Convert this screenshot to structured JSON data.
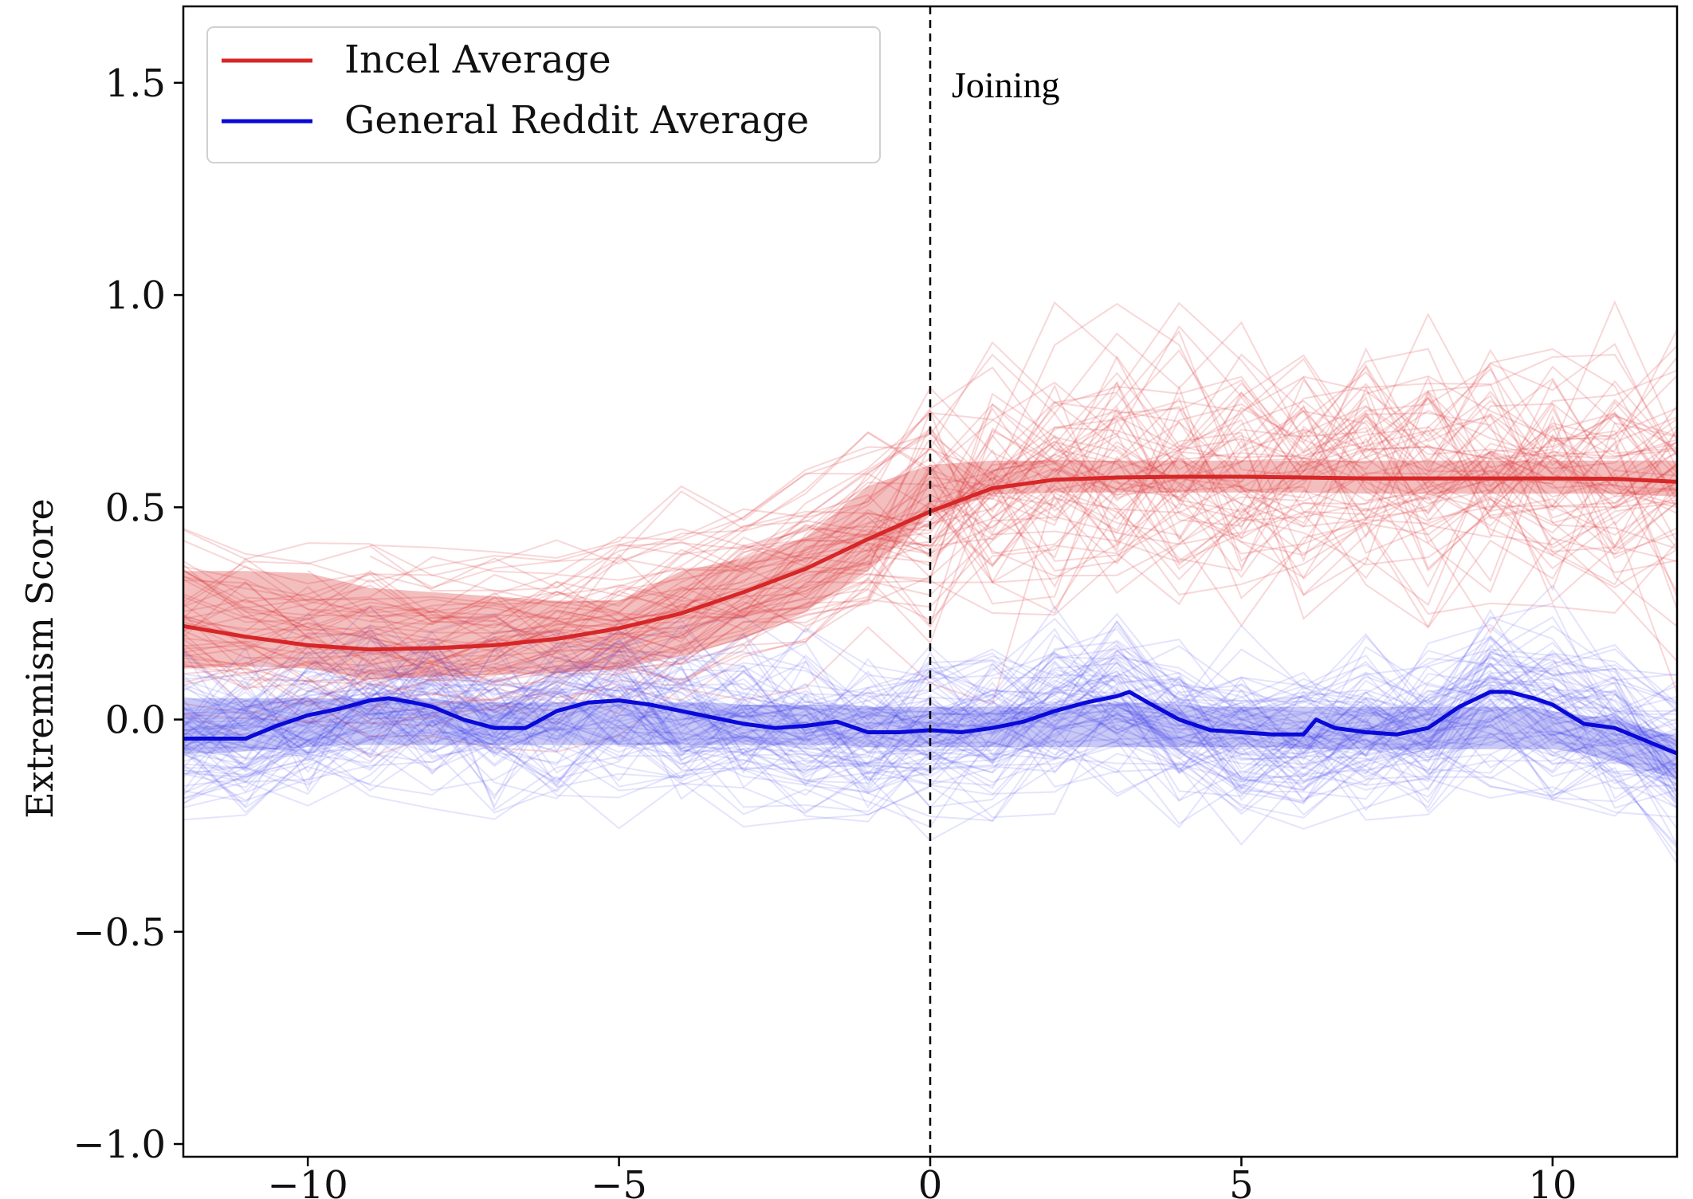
{
  "chart_data": {
    "type": "line",
    "title": "",
    "xlabel": "",
    "ylabel": "Extremism Score",
    "xlim": [
      -12,
      12
    ],
    "ylim": [
      -1.03,
      1.68
    ],
    "grid": false,
    "legend_position": "top-left",
    "xticks": [
      -10,
      -5,
      0,
      5,
      10
    ],
    "xtick_labels": [
      "−10",
      "−5",
      "0",
      "5",
      "10"
    ],
    "yticks": [
      -1.0,
      -0.5,
      0.0,
      0.5,
      1.0,
      1.5
    ],
    "ytick_labels": [
      "−1.0",
      "−0.5",
      "0.0",
      "0.5",
      "1.0",
      "1.5"
    ],
    "annotation": {
      "text": "Joining",
      "x": 0,
      "line_style": "dashed"
    },
    "series": [
      {
        "name": "Incel Average",
        "color": "#d62728",
        "x": [
          -12,
          -11,
          -10,
          -9,
          -8,
          -7,
          -6,
          -5,
          -4,
          -3,
          -2,
          -1,
          0,
          1,
          2,
          3,
          4,
          5,
          6,
          7,
          8,
          9,
          10,
          11,
          12
        ],
        "y": [
          0.22,
          0.195,
          0.175,
          0.165,
          0.168,
          0.175,
          0.19,
          0.215,
          0.25,
          0.3,
          0.355,
          0.425,
          0.49,
          0.545,
          0.565,
          0.57,
          0.572,
          0.572,
          0.57,
          0.568,
          0.568,
          0.568,
          0.568,
          0.567,
          0.56
        ],
        "band_low": [
          0.12,
          0.125,
          0.12,
          0.095,
          0.1,
          0.105,
          0.11,
          0.12,
          0.15,
          0.19,
          0.255,
          0.35,
          0.48,
          0.53,
          0.535,
          0.535,
          0.535,
          0.535,
          0.535,
          0.532,
          0.532,
          0.532,
          0.532,
          0.532,
          0.525
        ],
        "band_high": [
          0.35,
          0.35,
          0.345,
          0.31,
          0.3,
          0.29,
          0.28,
          0.28,
          0.35,
          0.38,
          0.43,
          0.55,
          0.6,
          0.61,
          0.61,
          0.61,
          0.61,
          0.61,
          0.61,
          0.61,
          0.61,
          0.61,
          0.61,
          0.61,
          0.61
        ]
      },
      {
        "name": "General Reddit Average",
        "color": "#0a0ad8",
        "x": [
          -12,
          -11.5,
          -11,
          -10.5,
          -10,
          -9.5,
          -9,
          -8.7,
          -8.3,
          -8,
          -7.5,
          -7,
          -6.5,
          -6,
          -5.5,
          -5,
          -4.5,
          -4,
          -3.5,
          -3,
          -2.5,
          -2,
          -1.5,
          -1,
          -0.5,
          0,
          0.5,
          1,
          1.5,
          2,
          2.5,
          3,
          3.2,
          3.5,
          4,
          4.5,
          5,
          5.5,
          6,
          6.2,
          6.5,
          7,
          7.5,
          8,
          8.5,
          9,
          9.3,
          9.7,
          10,
          10.5,
          11,
          11.5,
          12
        ],
        "y": [
          -0.045,
          -0.045,
          -0.045,
          -0.015,
          0.01,
          0.025,
          0.045,
          0.05,
          0.04,
          0.03,
          0.0,
          -0.02,
          -0.02,
          0.02,
          0.04,
          0.045,
          0.035,
          0.02,
          0.005,
          -0.01,
          -0.02,
          -0.015,
          -0.005,
          -0.03,
          -0.03,
          -0.025,
          -0.03,
          -0.02,
          -0.005,
          0.02,
          0.04,
          0.055,
          0.065,
          0.04,
          0.0,
          -0.025,
          -0.03,
          -0.035,
          -0.035,
          0.0,
          -0.02,
          -0.03,
          -0.035,
          -0.02,
          0.03,
          0.065,
          0.065,
          0.05,
          0.035,
          -0.01,
          -0.02,
          -0.05,
          -0.08
        ],
        "band_low": [
          -0.08,
          -0.08,
          -0.075,
          -0.07,
          -0.065,
          -0.06,
          -0.06,
          -0.06,
          -0.06,
          -0.06,
          -0.06,
          -0.06,
          -0.06,
          -0.06,
          -0.06,
          -0.06,
          -0.06,
          -0.06,
          -0.06,
          -0.06,
          -0.06,
          -0.06,
          -0.06,
          -0.065,
          -0.065,
          -0.065,
          -0.065,
          -0.065,
          -0.065,
          -0.065,
          -0.065,
          -0.065,
          -0.065,
          -0.065,
          -0.065,
          -0.065,
          -0.065,
          -0.065,
          -0.07,
          -0.07,
          -0.07,
          -0.07,
          -0.07,
          -0.07,
          -0.07,
          -0.07,
          -0.07,
          -0.07,
          -0.07,
          -0.08,
          -0.1,
          -0.12,
          -0.14
        ],
        "band_high": [
          0.05,
          0.05,
          0.05,
          0.05,
          0.05,
          0.05,
          0.05,
          0.055,
          0.05,
          0.05,
          0.04,
          0.04,
          0.04,
          0.04,
          0.04,
          0.04,
          0.04,
          0.04,
          0.04,
          0.035,
          0.035,
          0.035,
          0.035,
          0.03,
          0.03,
          0.03,
          0.03,
          0.03,
          0.03,
          0.03,
          0.035,
          0.04,
          0.04,
          0.04,
          0.035,
          0.03,
          0.03,
          0.03,
          0.03,
          0.03,
          0.03,
          0.03,
          0.03,
          0.03,
          0.03,
          0.03,
          0.03,
          0.03,
          0.02,
          0.01,
          0.0,
          -0.02,
          -0.04
        ]
      }
    ],
    "individual_traces": {
      "incel_color": "#e0474c",
      "reddit_color": "#5a5af0"
    }
  }
}
